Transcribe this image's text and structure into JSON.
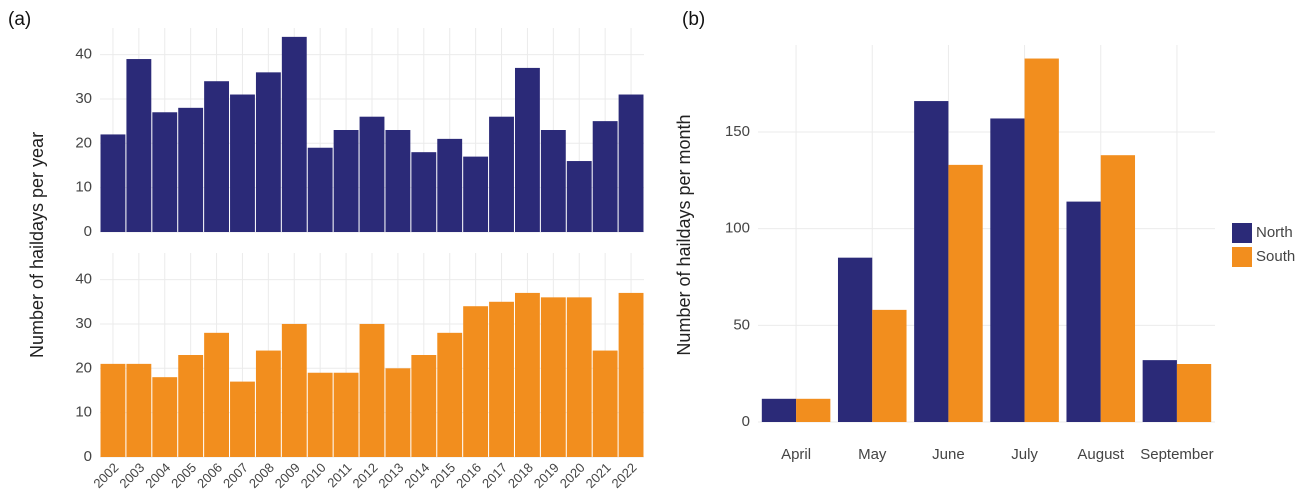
{
  "chart_data": [
    {
      "type": "bar",
      "label": "(a)",
      "ylabel": "Number of haildays per year",
      "facet": true,
      "categories": [
        "2002",
        "2003",
        "2004",
        "2005",
        "2006",
        "2007",
        "2008",
        "2009",
        "2010",
        "2011",
        "2012",
        "2013",
        "2014",
        "2015",
        "2016",
        "2017",
        "2018",
        "2019",
        "2020",
        "2021",
        "2022"
      ],
      "series": [
        {
          "color": "#2b2a78",
          "values": [
            22,
            39,
            27,
            28,
            34,
            31,
            36,
            44,
            19,
            23,
            26,
            23,
            18,
            21,
            17,
            26,
            37,
            23,
            16,
            25,
            31
          ]
        },
        {
          "color": "#f28e1e",
          "values": [
            21,
            21,
            18,
            23,
            28,
            17,
            24,
            30,
            19,
            19,
            30,
            20,
            23,
            28,
            34,
            35,
            37,
            36,
            36,
            24,
            37
          ]
        }
      ],
      "ylim": [
        0,
        46
      ],
      "yticks": [
        0,
        10,
        20,
        30,
        40
      ],
      "grid": true
    },
    {
      "type": "bar",
      "label": "(b)",
      "ylabel": "Number of haildays per month",
      "facet": false,
      "categories": [
        "April",
        "May",
        "June",
        "July",
        "August",
        "September"
      ],
      "series": [
        {
          "name": "North",
          "color": "#2b2a78",
          "values": [
            12,
            85,
            166,
            157,
            114,
            32
          ]
        },
        {
          "name": "South",
          "color": "#f28e1e",
          "values": [
            12,
            58,
            133,
            188,
            138,
            30
          ]
        }
      ],
      "ylim": [
        0,
        195
      ],
      "yticks": [
        0,
        50,
        100,
        150
      ],
      "grid": true,
      "legend": "right"
    }
  ]
}
